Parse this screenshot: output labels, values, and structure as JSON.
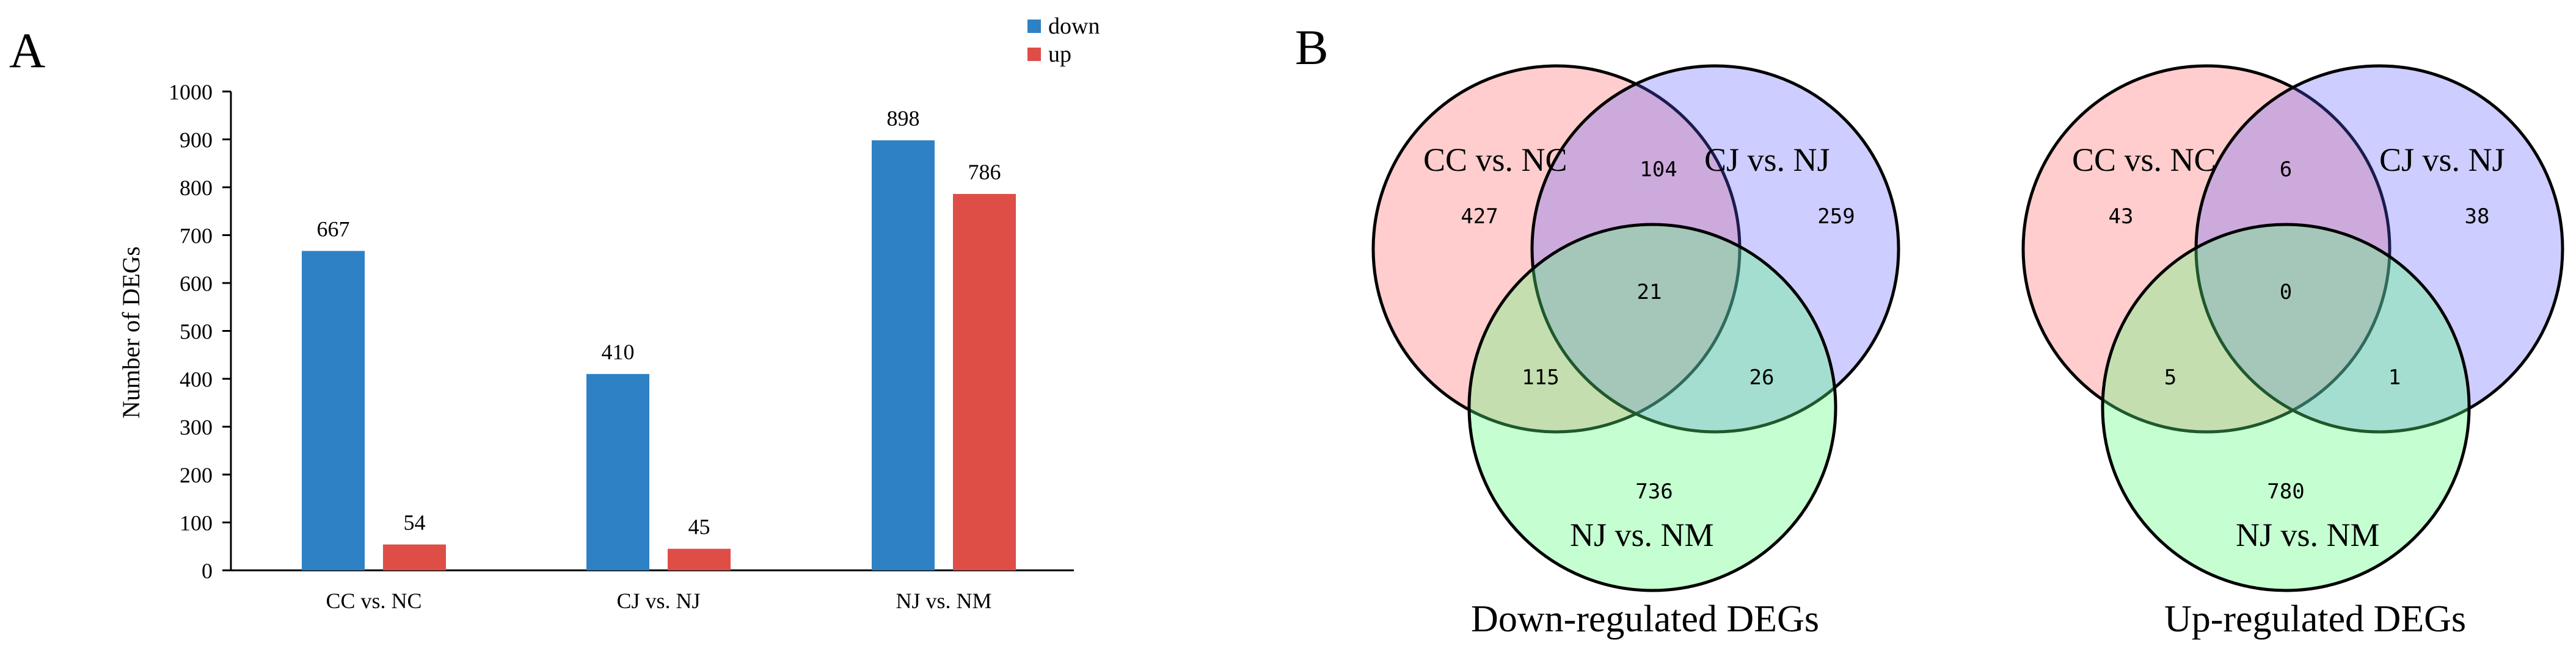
{
  "panels": {
    "a": "A",
    "b": "B"
  },
  "colors": {
    "down": "#2E81C4",
    "up": "#DE4E47"
  },
  "chart_data": {
    "type": "bar",
    "title": "",
    "xlabel": "",
    "ylabel": "Number of DEGs",
    "ylim": [
      0,
      1000
    ],
    "yticks": [
      "0",
      "100",
      "200",
      "300",
      "400",
      "500",
      "600",
      "700",
      "800",
      "900",
      "1000"
    ],
    "categories": [
      "CC vs. NC",
      "CJ vs. NJ",
      "NJ vs. NM"
    ],
    "series": [
      {
        "name": "down",
        "color": "#2E81C4",
        "values": [
          667,
          410,
          898
        ],
        "labels": [
          "667",
          "410",
          "898"
        ]
      },
      {
        "name": "up",
        "color": "#DE4E47",
        "values": [
          54,
          45,
          786
        ],
        "labels": [
          "54",
          "45",
          "786"
        ]
      }
    ],
    "legend_position": "top-right"
  },
  "venn": {
    "down": {
      "title": "Down-regulated DEGs",
      "set_labels": [
        "CC vs. NC",
        "CJ vs. NJ",
        "NJ vs. NM"
      ],
      "counts": {
        "a_only": "427",
        "ab": "104",
        "b_only": "259",
        "abc": "21",
        "ac": "115",
        "bc": "26",
        "c_only": "736"
      }
    },
    "up": {
      "title": "Up-regulated DEGs",
      "set_labels": [
        "CC vs. NC",
        "CJ vs. NJ",
        "NJ vs. NM"
      ],
      "counts": {
        "a_only": "43",
        "ab": "6",
        "b_only": "38",
        "abc": "0",
        "ac": "5",
        "bc": "1",
        "c_only": "780"
      }
    }
  }
}
